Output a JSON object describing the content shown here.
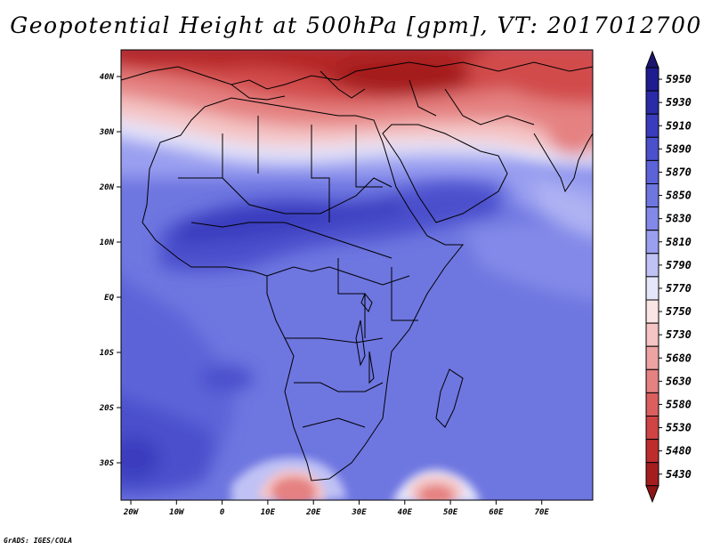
{
  "title": "Geopotential Height at 500hPa [gpm], VT: 2017012700",
  "footer": "GrADS: IGES/COLA",
  "lon_ticks": [
    "20W",
    "10W",
    "0",
    "10E",
    "20E",
    "30E",
    "40E",
    "50E",
    "60E",
    "70E"
  ],
  "lat_ticks": [
    "40N",
    "30N",
    "20N",
    "10N",
    "EQ",
    "10S",
    "20S",
    "30S"
  ],
  "colorbar": {
    "labels": [
      "5950",
      "5930",
      "5910",
      "5890",
      "5870",
      "5850",
      "5830",
      "5810",
      "5790",
      "5770",
      "5750",
      "5730",
      "5680",
      "5630",
      "5580",
      "5530",
      "5480",
      "5430"
    ],
    "colors": [
      "#1f1c8f",
      "#2b2aa8",
      "#3a3cbe",
      "#4b50cc",
      "#5c63d8",
      "#6e76e0",
      "#8289e8",
      "#9a9ff0",
      "#c0c2f5",
      "#e6e6fa",
      "#fbe4e4",
      "#f5c4c4",
      "#eea3a3",
      "#e58181",
      "#db5f5f",
      "#cf4444",
      "#bd2d2d",
      "#a51e1e"
    ],
    "top_arrow_color": "#1a1670",
    "bottom_arrow_color": "#8f1515"
  }
}
